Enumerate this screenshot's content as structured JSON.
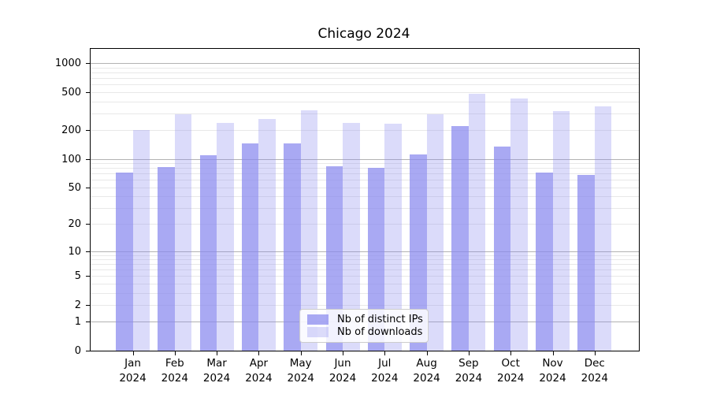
{
  "title": {
    "text": "Chicago 2024"
  },
  "colors": {
    "bar_base": "#8888ee",
    "bar_ips": "rgba(136,136,238,0.72)",
    "bar_downloads": "rgba(136,136,238,0.30)",
    "grid_major": "#b2b2b2",
    "grid_minor": "#e8e8e8",
    "axis": "#000000",
    "legend_border": "#cccccc"
  },
  "legend": {
    "items": [
      {
        "label": "Nb of distinct IPs",
        "series": "ips"
      },
      {
        "label": "Nb of downloads",
        "series": "downloads"
      }
    ]
  },
  "chart_data": {
    "type": "bar",
    "title": "Chicago 2024",
    "categories": [
      "Jan",
      "Feb",
      "Mar",
      "Apr",
      "May",
      "Jun",
      "Jul",
      "Aug",
      "Sep",
      "Oct",
      "Nov",
      "Dec"
    ],
    "year_label": "2024",
    "series": [
      {
        "name": "Nb of distinct IPs",
        "values": [
          72,
          82,
          110,
          144,
          145,
          83,
          80,
          111,
          219,
          134,
          72,
          68
        ]
      },
      {
        "name": "Nb of downloads",
        "values": [
          200,
          292,
          240,
          260,
          325,
          238,
          232,
          292,
          478,
          430,
          318,
          357
        ]
      }
    ],
    "y_scale": "log1p",
    "ylim": [
      0,
      1418
    ],
    "y_tick_labels": [
      1000,
      500,
      200,
      100,
      50,
      20,
      10,
      5,
      2,
      1,
      0
    ],
    "y_major_gridlines": [
      1,
      10,
      100,
      1000
    ],
    "y_minor_gridlines": [
      2,
      3,
      4,
      5,
      6,
      7,
      8,
      9,
      20,
      30,
      40,
      50,
      60,
      70,
      80,
      90,
      200,
      300,
      400,
      500,
      600,
      700,
      800,
      900
    ],
    "xlabel": "",
    "ylabel": "",
    "grid": true,
    "legend_position": "lower center"
  }
}
